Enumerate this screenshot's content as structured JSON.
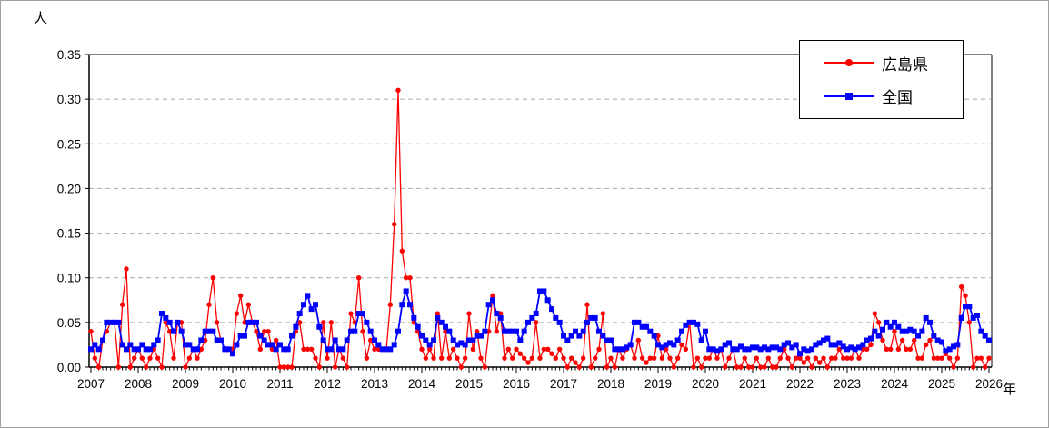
{
  "chart_data": {
    "type": "line",
    "title": "",
    "y_axis": {
      "unit": "人",
      "min": 0,
      "max": 0.35,
      "tick_step": 0.05,
      "ticks": [
        "0.00",
        "0.05",
        "0.10",
        "0.15",
        "0.20",
        "0.25",
        "0.30",
        "0.35"
      ],
      "gridlines": "dashed"
    },
    "x_axis": {
      "unit": "年",
      "start": "2007-01",
      "end": "2026-01",
      "interval": "monthly",
      "ticks": [
        "2007",
        "2008",
        "2009",
        "2010",
        "2011",
        "2012",
        "2013",
        "2014",
        "2015",
        "2016",
        "2017",
        "2018",
        "2019",
        "2020",
        "2021",
        "2022",
        "2023",
        "2024",
        "2025",
        "2026"
      ]
    },
    "legend": {
      "position": "top-right",
      "border": "#000000",
      "background": "#ffffff"
    },
    "series": [
      {
        "name": "広島県",
        "color": "#ff0000",
        "marker": "circle",
        "values": [
          0.04,
          0.01,
          0.0,
          0.03,
          0.04,
          0.05,
          0.05,
          0.0,
          0.07,
          0.11,
          0.0,
          0.01,
          0.02,
          0.01,
          0.0,
          0.01,
          0.02,
          0.01,
          0.0,
          0.05,
          0.04,
          0.01,
          0.05,
          0.05,
          0.0,
          0.01,
          0.02,
          0.01,
          0.02,
          0.03,
          0.07,
          0.1,
          0.05,
          0.03,
          0.02,
          0.02,
          0.02,
          0.06,
          0.08,
          0.05,
          0.07,
          0.05,
          0.04,
          0.02,
          0.04,
          0.04,
          0.02,
          0.03,
          0.0,
          0.0,
          0.0,
          0.0,
          0.04,
          0.05,
          0.02,
          0.02,
          0.02,
          0.01,
          0.0,
          0.05,
          0.01,
          0.05,
          0.0,
          0.02,
          0.01,
          0.0,
          0.06,
          0.05,
          0.1,
          0.04,
          0.01,
          0.03,
          0.02,
          0.02,
          0.02,
          0.02,
          0.07,
          0.16,
          0.31,
          0.13,
          0.1,
          0.1,
          0.05,
          0.04,
          0.02,
          0.01,
          0.02,
          0.01,
          0.06,
          0.01,
          0.04,
          0.01,
          0.02,
          0.01,
          0.0,
          0.01,
          0.06,
          0.02,
          0.04,
          0.01,
          0.0,
          0.04,
          0.08,
          0.04,
          0.06,
          0.01,
          0.02,
          0.01,
          0.02,
          0.015,
          0.01,
          0.005,
          0.01,
          0.05,
          0.01,
          0.02,
          0.02,
          0.015,
          0.01,
          0.02,
          0.01,
          0.0,
          0.01,
          0.005,
          0.0,
          0.01,
          0.07,
          0.0,
          0.01,
          0.02,
          0.06,
          0.0,
          0.01,
          0.0,
          0.02,
          0.01,
          0.02,
          0.025,
          0.01,
          0.03,
          0.01,
          0.005,
          0.01,
          0.01,
          0.035,
          0.01,
          0.02,
          0.01,
          0.0,
          0.01,
          0.025,
          0.02,
          0.05,
          0.0,
          0.01,
          0.0,
          0.01,
          0.01,
          0.02,
          0.01,
          0.02,
          0.0,
          0.01,
          0.02,
          0.0,
          0.0,
          0.01,
          0.0,
          0.0,
          0.01,
          0.0,
          0.0,
          0.01,
          0.0,
          0.0,
          0.01,
          0.02,
          0.01,
          0.0,
          0.01,
          0.01,
          0.005,
          0.01,
          0.0,
          0.01,
          0.005,
          0.01,
          0.0,
          0.01,
          0.01,
          0.02,
          0.01,
          0.01,
          0.01,
          0.02,
          0.01,
          0.02,
          0.02,
          0.025,
          0.06,
          0.05,
          0.03,
          0.02,
          0.02,
          0.04,
          0.02,
          0.03,
          0.02,
          0.02,
          0.03,
          0.01,
          0.01,
          0.025,
          0.03,
          0.01,
          0.01,
          0.01,
          0.015,
          0.01,
          0.0,
          0.01,
          0.09,
          0.08,
          0.05,
          0.0,
          0.01,
          0.01,
          0.0,
          0.01
        ]
      },
      {
        "name": "全国",
        "color": "#0000ff",
        "marker": "square",
        "values": [
          0.02,
          0.025,
          0.02,
          0.03,
          0.05,
          0.05,
          0.05,
          0.05,
          0.025,
          0.02,
          0.025,
          0.02,
          0.02,
          0.025,
          0.02,
          0.02,
          0.025,
          0.03,
          0.06,
          0.055,
          0.05,
          0.04,
          0.05,
          0.04,
          0.025,
          0.025,
          0.02,
          0.02,
          0.03,
          0.04,
          0.04,
          0.04,
          0.03,
          0.03,
          0.02,
          0.02,
          0.015,
          0.025,
          0.035,
          0.035,
          0.05,
          0.05,
          0.05,
          0.035,
          0.03,
          0.025,
          0.025,
          0.02,
          0.025,
          0.02,
          0.02,
          0.035,
          0.045,
          0.06,
          0.07,
          0.08,
          0.065,
          0.07,
          0.045,
          0.03,
          0.02,
          0.02,
          0.03,
          0.02,
          0.02,
          0.03,
          0.04,
          0.04,
          0.06,
          0.06,
          0.05,
          0.04,
          0.03,
          0.025,
          0.02,
          0.02,
          0.02,
          0.025,
          0.04,
          0.07,
          0.085,
          0.07,
          0.055,
          0.045,
          0.035,
          0.03,
          0.025,
          0.03,
          0.055,
          0.05,
          0.045,
          0.04,
          0.03,
          0.025,
          0.027,
          0.025,
          0.03,
          0.03,
          0.035,
          0.035,
          0.04,
          0.07,
          0.075,
          0.06,
          0.055,
          0.04,
          0.04,
          0.04,
          0.04,
          0.03,
          0.04,
          0.05,
          0.055,
          0.06,
          0.085,
          0.085,
          0.075,
          0.065,
          0.055,
          0.05,
          0.035,
          0.03,
          0.035,
          0.04,
          0.035,
          0.04,
          0.05,
          0.055,
          0.055,
          0.04,
          0.035,
          0.03,
          0.03,
          0.02,
          0.02,
          0.02,
          0.022,
          0.025,
          0.05,
          0.05,
          0.045,
          0.045,
          0.04,
          0.035,
          0.025,
          0.022,
          0.025,
          0.027,
          0.025,
          0.03,
          0.04,
          0.047,
          0.05,
          0.05,
          0.048,
          0.03,
          0.04,
          0.02,
          0.02,
          0.018,
          0.02,
          0.025,
          0.027,
          0.02,
          0.02,
          0.023,
          0.02,
          0.02,
          0.022,
          0.022,
          0.02,
          0.022,
          0.02,
          0.022,
          0.022,
          0.02,
          0.025,
          0.027,
          0.022,
          0.025,
          0.015,
          0.02,
          0.018,
          0.02,
          0.025,
          0.027,
          0.03,
          0.032,
          0.025,
          0.025,
          0.027,
          0.023,
          0.02,
          0.022,
          0.02,
          0.022,
          0.025,
          0.03,
          0.032,
          0.04,
          0.035,
          0.042,
          0.05,
          0.045,
          0.05,
          0.045,
          0.04,
          0.04,
          0.042,
          0.04,
          0.035,
          0.04,
          0.055,
          0.05,
          0.035,
          0.03,
          0.028,
          0.018,
          0.02,
          0.023,
          0.025,
          0.055,
          0.068,
          0.068,
          0.055,
          0.058,
          0.04,
          0.035,
          0.03
        ]
      }
    ],
    "colors": {
      "series1": "#ff0000",
      "series2": "#0000ff",
      "gridline": "#aaaaaa",
      "plot_frame": "#808080",
      "axis": "#000000"
    }
  },
  "legend": {
    "items": [
      {
        "label": "広島県"
      },
      {
        "label": "全国"
      }
    ]
  },
  "labels": {
    "y_unit": "人",
    "x_unit": "年"
  }
}
